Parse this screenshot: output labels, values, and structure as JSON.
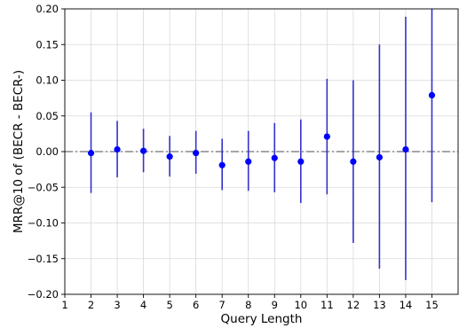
{
  "chart_data": {
    "type": "scatter",
    "xlabel": "Query Length",
    "ylabel": "MRR@10 of (BECR - BECR-)",
    "xlim": [
      1,
      16
    ],
    "ylim": [
      -0.2,
      0.2
    ],
    "xticks": [
      1,
      2,
      3,
      4,
      5,
      6,
      7,
      8,
      9,
      10,
      11,
      12,
      13,
      14,
      15
    ],
    "yticks": [
      -0.2,
      -0.15,
      -0.1,
      -0.05,
      0.0,
      0.05,
      0.1,
      0.15,
      0.2
    ],
    "ytick_labels": [
      "−0.20",
      "−0.15",
      "−0.10",
      "−0.05",
      "0.00",
      "0.05",
      "0.10",
      "0.15",
      "0.20"
    ],
    "grid": true,
    "reference_line": 0.0,
    "colors": {
      "points": "#0000ff",
      "errorbars": "#3333cc",
      "reference": "#888888",
      "grid": "#d9d9d9"
    },
    "series": [
      {
        "x": [
          2,
          3,
          4,
          5,
          6,
          7,
          8,
          9,
          10,
          11,
          12,
          13,
          14,
          15
        ],
        "y": [
          -0.002,
          0.003,
          0.001,
          -0.007,
          -0.002,
          -0.019,
          -0.014,
          -0.009,
          -0.014,
          0.021,
          -0.014,
          -0.008,
          0.003,
          0.079
        ],
        "y_low": [
          -0.058,
          -0.036,
          -0.029,
          -0.035,
          -0.031,
          -0.054,
          -0.055,
          -0.057,
          -0.072,
          -0.06,
          -0.128,
          -0.164,
          -0.18,
          -0.071
        ],
        "y_high": [
          0.055,
          0.043,
          0.032,
          0.022,
          0.029,
          0.018,
          0.029,
          0.04,
          0.045,
          0.102,
          0.1,
          0.15,
          0.189,
          0.2
        ]
      }
    ]
  }
}
